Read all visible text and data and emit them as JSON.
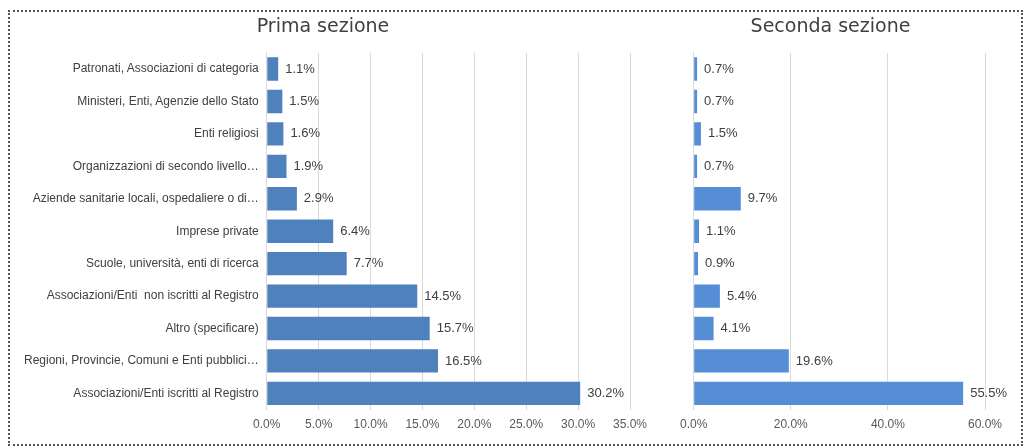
{
  "chart_data": [
    {
      "type": "bar",
      "orientation": "horizontal",
      "title": "Prima sezione",
      "categories": [
        "Patronati, Associazioni di categoria",
        "Ministeri, Enti, Agenzie dello Stato",
        "Enti religiosi",
        "Organizzazioni di secondo livello…",
        "Aziende sanitarie locali, ospedaliere o di…",
        "Imprese private",
        "Scuole, università, enti di ricerca",
        "Associazioni/Enti  non iscritti al Registro",
        "Altro (specificare)",
        "Regioni, Provincie, Comuni e Enti pubblici…",
        "Associazioni/Enti iscritti al Registro"
      ],
      "values": [
        1.1,
        1.5,
        1.6,
        1.9,
        2.9,
        6.4,
        7.7,
        14.5,
        15.7,
        16.5,
        30.2
      ],
      "value_labels": [
        "1.1%",
        "1.5%",
        "1.6%",
        "1.9%",
        "2.9%",
        "6.4%",
        "7.7%",
        "14.5%",
        "15.7%",
        "16.5%",
        "30.2%"
      ],
      "color": "#4f81bd",
      "xlim": [
        0,
        35
      ],
      "xticks": [
        {
          "value": 0,
          "label": "0.0%"
        },
        {
          "value": 5,
          "label": "5.0%"
        },
        {
          "value": 10,
          "label": "10.0%"
        },
        {
          "value": 15,
          "label": "15.0%"
        },
        {
          "value": 20,
          "label": "20.0%"
        },
        {
          "value": 25,
          "label": "25.0%"
        },
        {
          "value": 30,
          "label": "30.0%"
        },
        {
          "value": 35,
          "label": "35.0%"
        }
      ],
      "grid": "x",
      "legend": false
    },
    {
      "type": "bar",
      "orientation": "horizontal",
      "title": "Seconda sezione",
      "categories": [
        null,
        null,
        null,
        null,
        null,
        null,
        null,
        null,
        null,
        null,
        null
      ],
      "values": [
        0.7,
        0.7,
        1.5,
        0.7,
        9.7,
        1.1,
        0.9,
        5.4,
        4.1,
        19.6,
        55.5
      ],
      "value_labels": [
        "0.7%",
        "0.7%",
        "1.5%",
        "0.7%",
        "9.7%",
        "1.1%",
        "0.9%",
        "5.4%",
        "4.1%",
        "19.6%",
        "55.5%"
      ],
      "color": "#558ed5",
      "xlim": [
        0,
        60
      ],
      "xticks": [
        {
          "value": 0,
          "label": "0.0%"
        },
        {
          "value": 20,
          "label": "20.0%"
        },
        {
          "value": 40,
          "label": "40.0%"
        },
        {
          "value": 60,
          "label": "60.0%"
        }
      ],
      "grid": "x",
      "legend": false
    }
  ]
}
